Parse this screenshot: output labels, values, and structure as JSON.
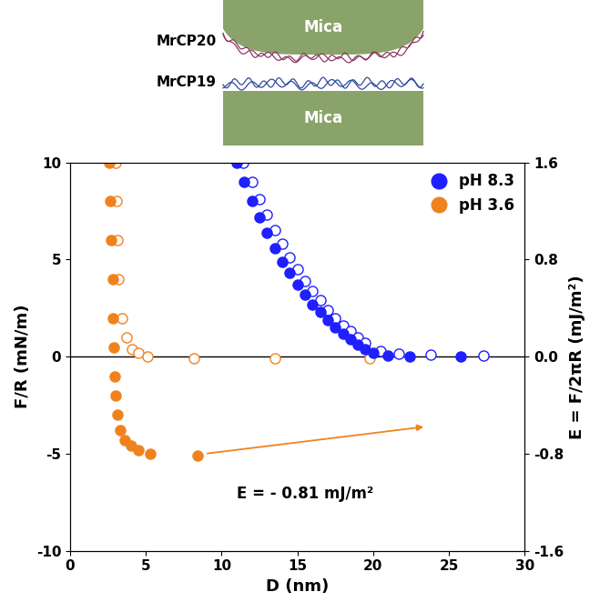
{
  "chart_data": {
    "type": "scatter",
    "x_label": "D (nm)",
    "y_label": "F/R (mN/m)",
    "y2_label": "E = F/2πR (mJ/m²)",
    "xlim": [
      0,
      30
    ],
    "xticks": [
      0,
      5,
      10,
      15,
      20,
      25,
      30
    ],
    "ylim": [
      -10,
      10
    ],
    "yticks": [
      -10,
      -5,
      0,
      5,
      10
    ],
    "y2lim": [
      -1.6,
      1.6
    ],
    "y2ticks": [
      -1.6,
      -0.8,
      {
        "value": 0,
        "label": "0.0"
      },
      0.8,
      1.6
    ],
    "legend": "upper right",
    "annotations": [
      {
        "text": "E = - 0.81 mJ/m²",
        "color": "#f0821e"
      }
    ],
    "diagram": {
      "top_label": "MrCP20",
      "bottom_label": "MrCP19",
      "surfaces": [
        "Mica",
        "Mica"
      ]
    },
    "series": [
      {
        "name": "pH 8.3",
        "color": "#1f1fff",
        "marker": "circle",
        "x": [
          11.0,
          11.5,
          12.0,
          12.5,
          13.0,
          13.5,
          14.0,
          14.5,
          15.0,
          15.5,
          16.0,
          16.5,
          17.0,
          17.5,
          18.0,
          18.5,
          19.0,
          19.5,
          20.0,
          21.0,
          22.4,
          25.8
        ],
        "values": [
          10.0,
          9.0,
          8.0,
          7.2,
          6.4,
          5.6,
          4.9,
          4.3,
          3.7,
          3.2,
          2.7,
          2.3,
          1.9,
          1.5,
          1.2,
          0.9,
          0.6,
          0.4,
          0.2,
          0.05,
          0.0,
          0.0
        ]
      },
      {
        "color": "#1f1fff",
        "marker": "open circle",
        "x": [
          11.4,
          12.0,
          12.5,
          13.0,
          13.5,
          14.0,
          14.5,
          15.0,
          15.5,
          16.0,
          16.5,
          17.0,
          17.5,
          18.0,
          18.5,
          19.0,
          19.5,
          20.5,
          21.7,
          23.8,
          27.3
        ],
        "values": [
          10.0,
          9.0,
          8.1,
          7.3,
          6.5,
          5.8,
          5.1,
          4.5,
          3.9,
          3.4,
          2.9,
          2.4,
          2.0,
          1.6,
          1.3,
          1.0,
          0.7,
          0.3,
          0.15,
          0.1,
          0.05
        ]
      },
      {
        "name": "pH 3.6",
        "color": "#f0821e",
        "marker": "circle",
        "x": [
          2.6,
          2.65,
          2.7,
          2.8,
          2.85,
          2.9,
          2.95,
          3.0,
          3.1,
          3.3,
          3.6,
          4.0,
          4.5,
          5.3,
          8.4
        ],
        "values": [
          10.0,
          8.0,
          6.0,
          4.0,
          2.0,
          0.5,
          -1.0,
          -2.0,
          -3.0,
          -3.8,
          -4.3,
          -4.6,
          -4.8,
          -5.0,
          -5.1
        ]
      },
      {
        "color": "#f0821e",
        "marker": "open circle",
        "x": [
          3.0,
          3.05,
          3.1,
          3.2,
          3.4,
          3.7,
          4.1,
          4.5,
          5.1,
          8.2,
          13.5,
          19.8
        ],
        "values": [
          10.0,
          8.0,
          6.0,
          4.0,
          2.0,
          1.0,
          0.4,
          0.2,
          0.0,
          -0.1,
          -0.1,
          -0.1
        ]
      }
    ]
  }
}
